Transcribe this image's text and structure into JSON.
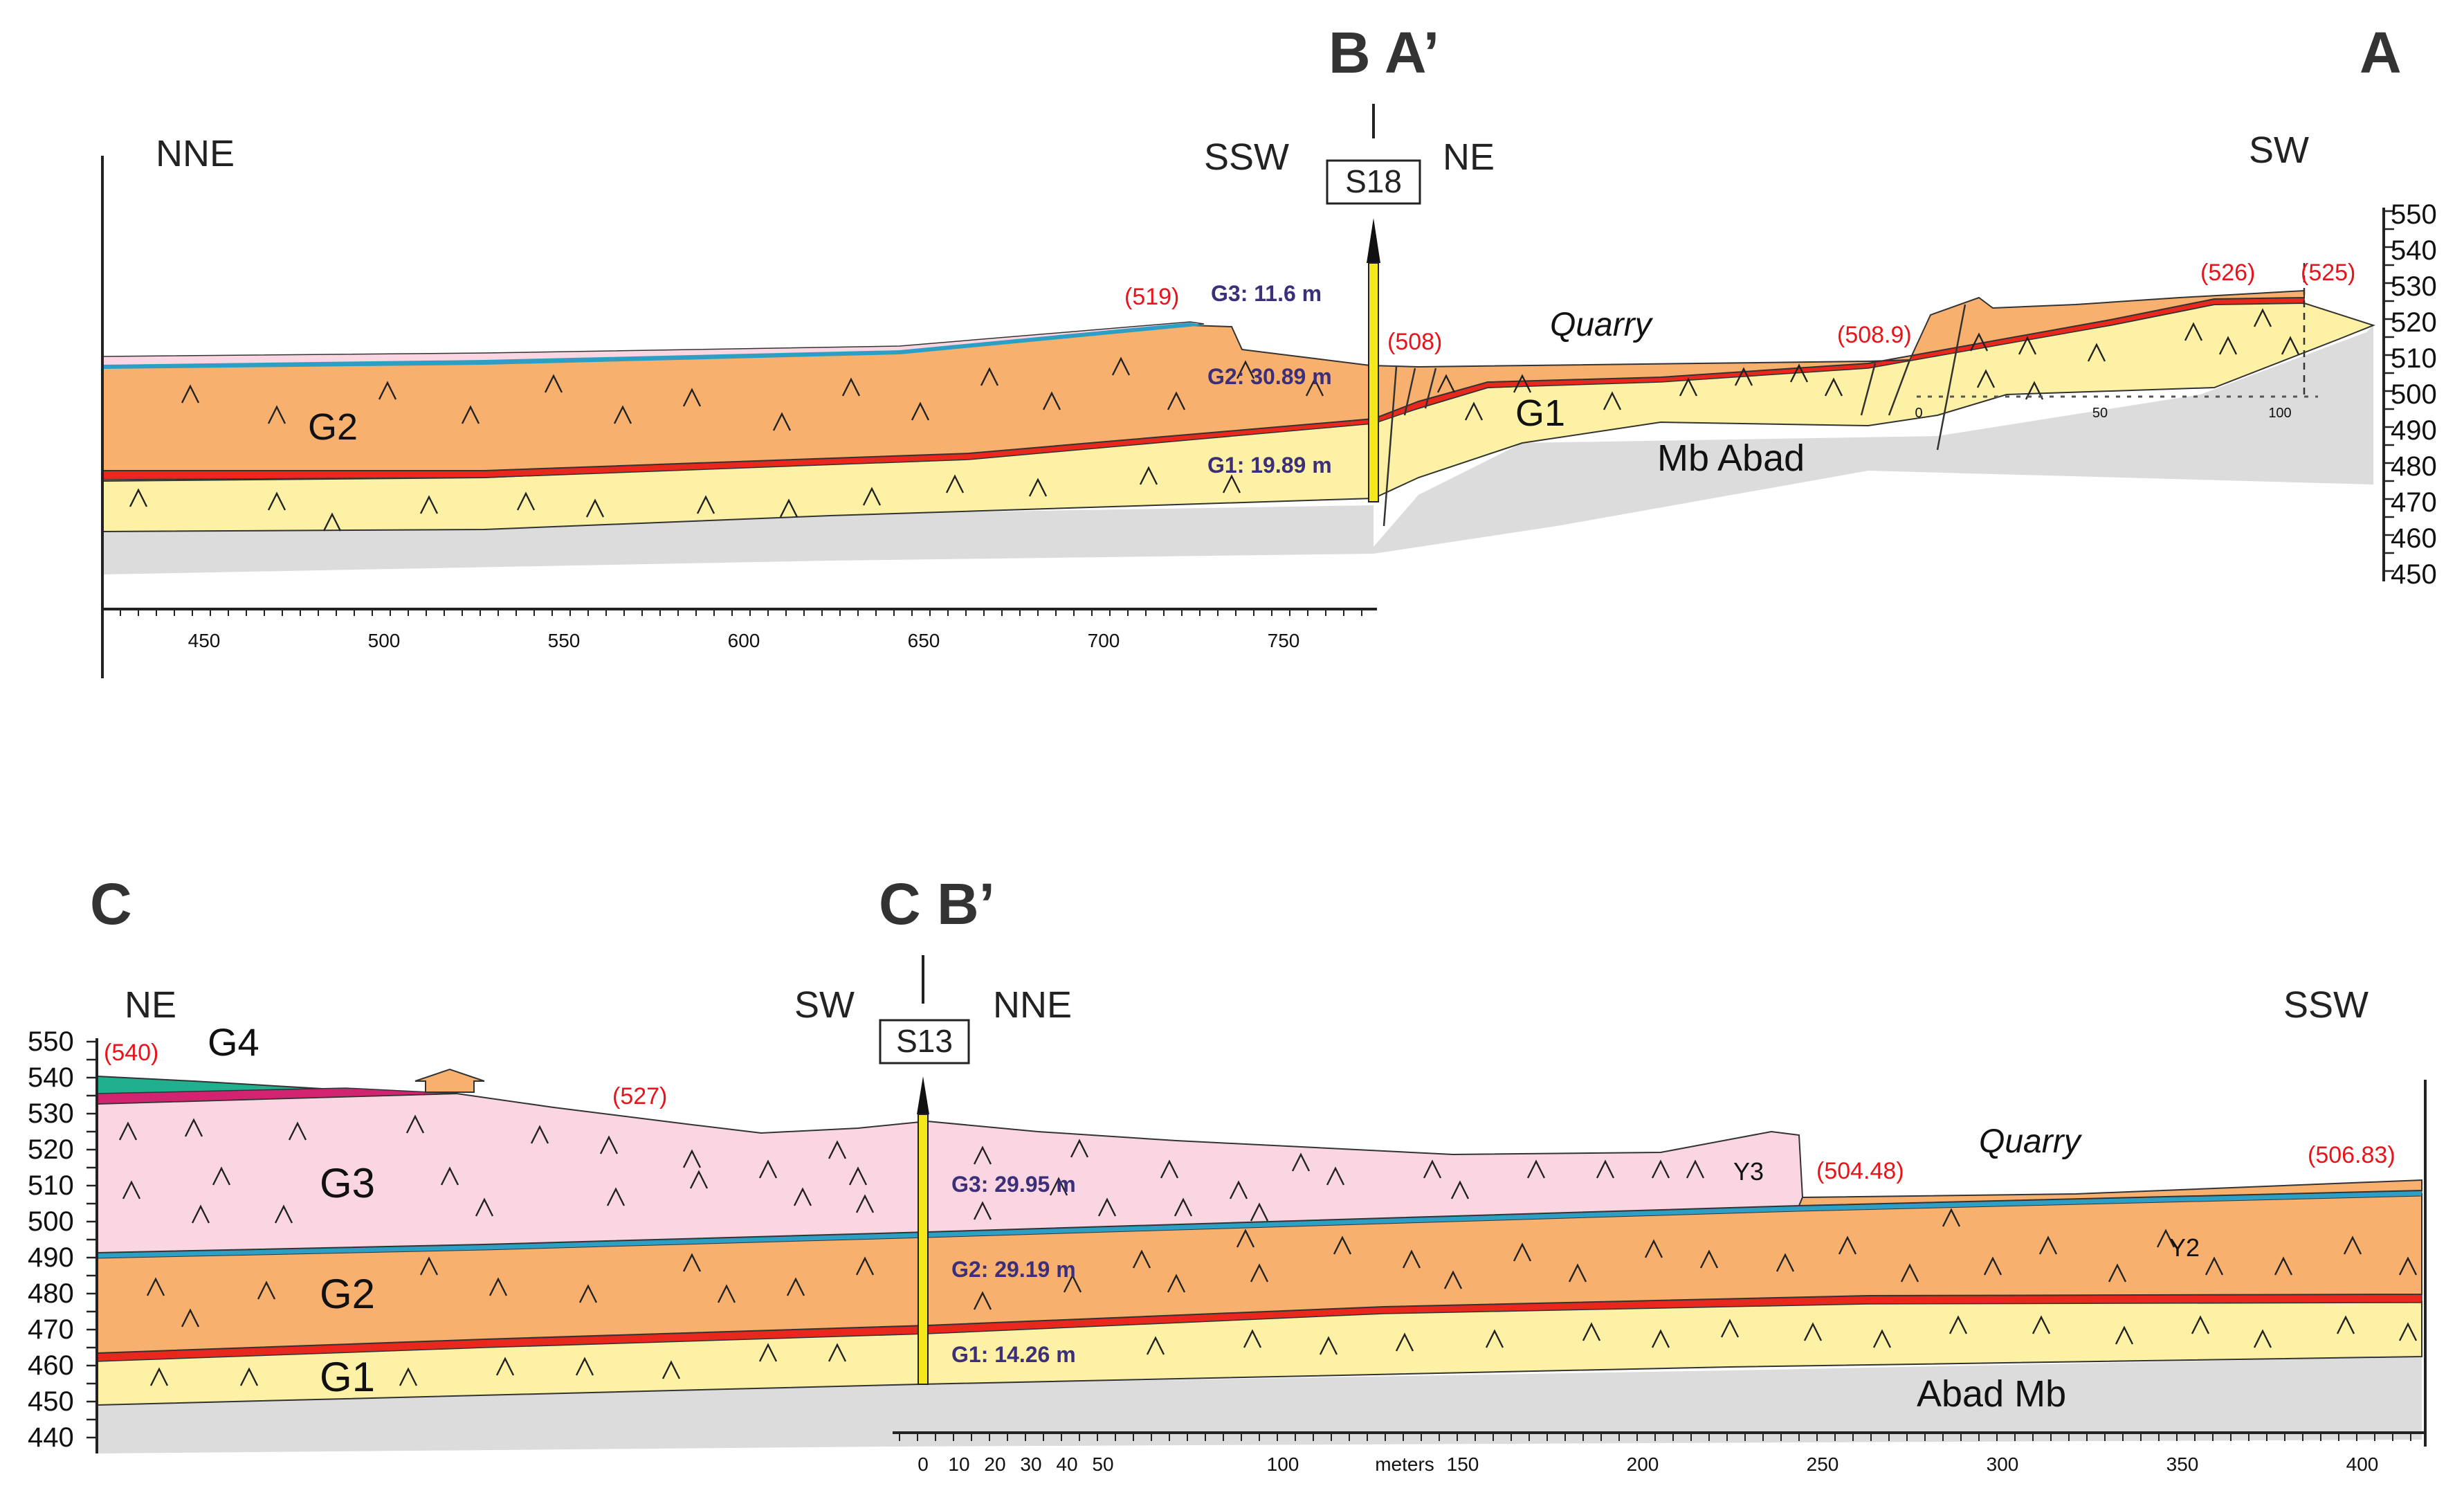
{
  "section_top": {
    "end_labels": {
      "left": "B A’",
      "right": "A"
    },
    "directions": {
      "left": "NNE",
      "mid_left": "SSW",
      "mid_right": "NE",
      "right": "SW"
    },
    "borehole": "S18",
    "units": {
      "g2": "G2",
      "g1": "G1",
      "basement": "Mb Abad"
    },
    "quarry": "Quarry",
    "elevations": [
      "(519)",
      "(508)",
      "(508.9)",
      "(526)",
      "(525)"
    ],
    "thicknesses": {
      "g3": "G3: 11.6 m",
      "g2": "G2: 30.89 m",
      "g1": "G1: 19.89 m"
    },
    "x_ticks": [
      "450",
      "500",
      "550",
      "600",
      "650",
      "700",
      "750"
    ],
    "small_ticks": [
      "0",
      "50",
      "100"
    ],
    "y_ticks": [
      "550",
      "540",
      "530",
      "520",
      "510",
      "500",
      "490",
      "480",
      "470",
      "460",
      "450"
    ]
  },
  "section_bottom": {
    "end_labels": {
      "left": "C",
      "right": "C B’"
    },
    "directions": {
      "left": "NE",
      "mid_left": "SW",
      "mid_right": "NNE",
      "right": "SSW"
    },
    "borehole": "S13",
    "units": {
      "g4": "G4",
      "g3": "G3",
      "g2": "G2",
      "g1": "G1",
      "y3": "Y3",
      "y2": "Y2",
      "basement": "Abad Mb"
    },
    "quarry": "Quarry",
    "elevations": [
      "(540)",
      "(527)",
      "(504.48)",
      "(506.83)"
    ],
    "thicknesses": {
      "g3": "G3: 29.95 m",
      "g2": "G2: 29.19 m",
      "g1": "G1: 14.26 m"
    },
    "x_ticks": [
      "0",
      "10",
      "20",
      "30",
      "40",
      "50",
      "100",
      "150",
      "200",
      "250",
      "300",
      "350",
      "400"
    ],
    "x_unit": "meters",
    "y_ticks": [
      "550",
      "540",
      "530",
      "520",
      "510",
      "500",
      "490",
      "480",
      "470",
      "460",
      "450",
      "440"
    ]
  },
  "colors": {
    "g1": "#fdf1a6",
    "g2": "#f8b06f",
    "g3": "#fad6e2",
    "g4": "#20b08e",
    "red_band": "#e8281c",
    "blue_band": "#2e9fc4",
    "basement": "#dcdcdc",
    "elevation_text": "#e8141b",
    "thickness_text": "#3b2f7a"
  }
}
